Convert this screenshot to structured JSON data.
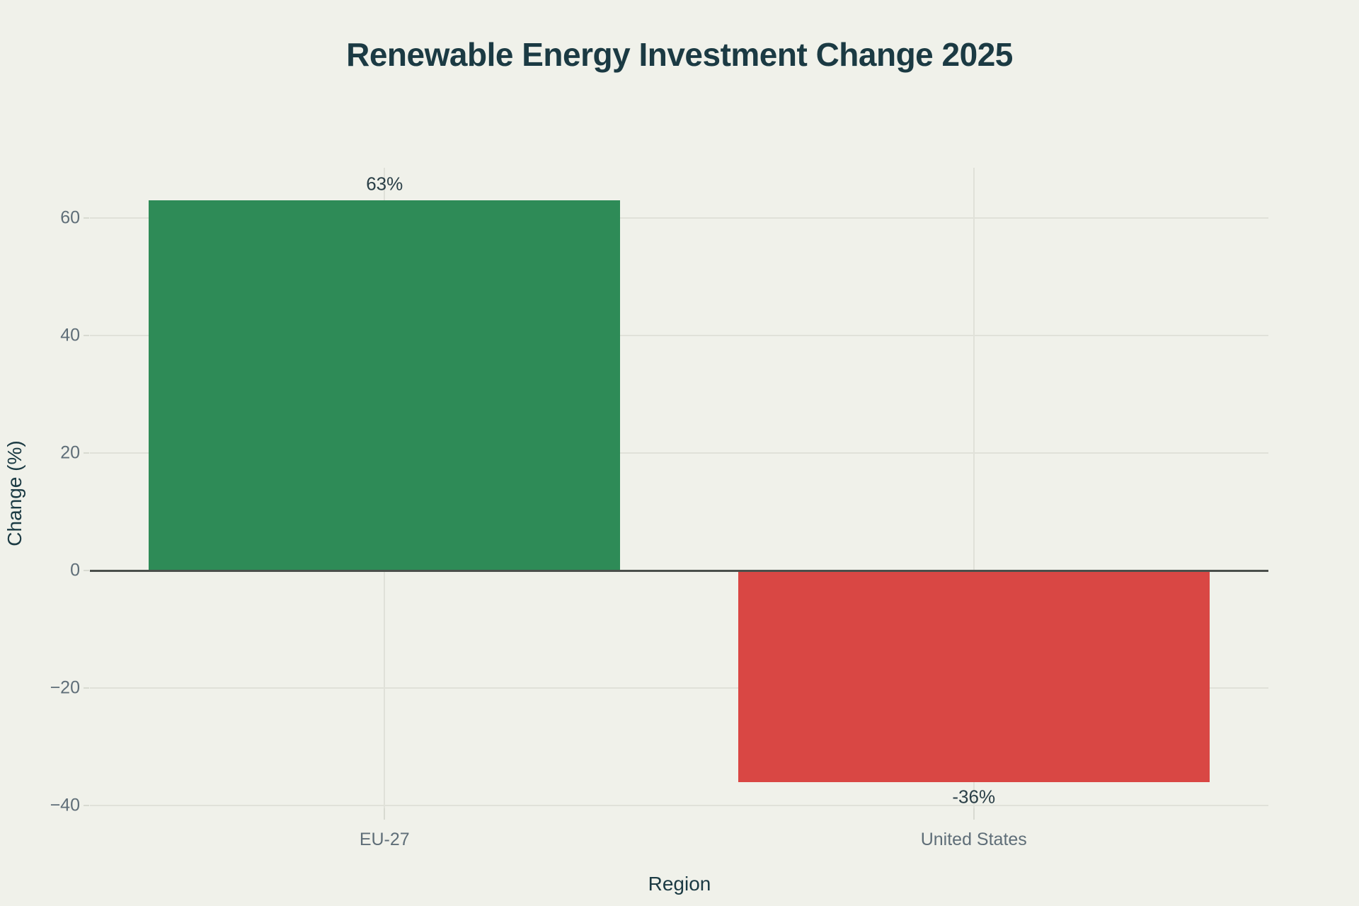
{
  "page": {
    "background": "#F0F1EA"
  },
  "colors": {
    "background": "#F0F1EA",
    "grid": "#E0E1D9",
    "zero_line": "#4A4F4B",
    "tick_mark": "#D8DAD1",
    "tick_text": "#5F6E78",
    "axis_title_text": "#1B3A43",
    "title_text": "#1B3A43",
    "bar_label_text": "#2A3F47",
    "positive_bar": "#2E8B57",
    "negative_bar": "#D94744"
  },
  "chart_data": {
    "type": "bar",
    "title": "Renewable Energy Investment Change 2025",
    "xlabel": "Region",
    "ylabel": "Change (%)",
    "categories": [
      "EU-27",
      "United States"
    ],
    "values": [
      63,
      -36
    ],
    "value_labels": [
      "63%",
      "-36%"
    ],
    "bar_colors": [
      "#2E8B57",
      "#D94744"
    ],
    "yticks": [
      60,
      40,
      20,
      0,
      -20,
      -40
    ],
    "ytick_labels": [
      "60",
      "40",
      "20",
      "0",
      "−20",
      "−40"
    ],
    "ylim": [
      -42.4,
      68.6
    ],
    "grid": true,
    "legend": false,
    "zero_line": true,
    "value_label_positions": [
      "above-bar",
      "below-bar"
    ]
  }
}
